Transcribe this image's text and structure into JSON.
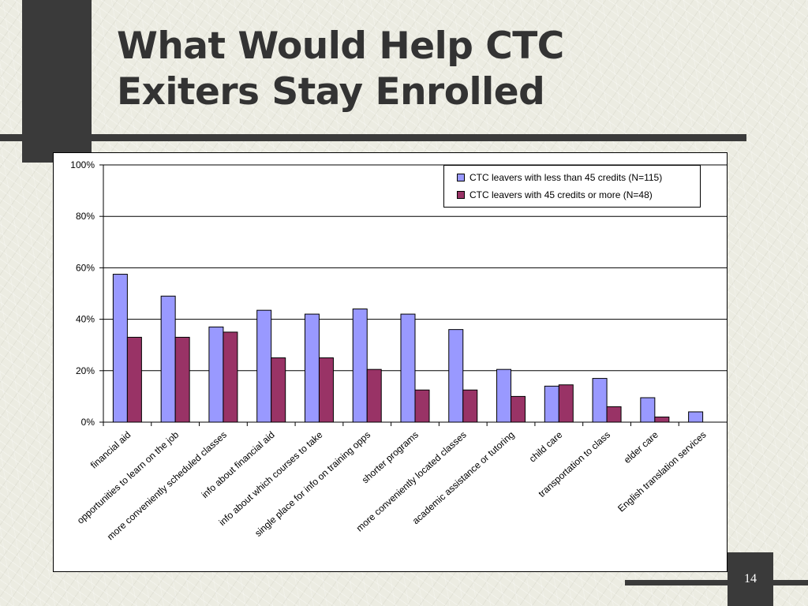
{
  "slide": {
    "title_line1": "What Would Help CTC",
    "title_line2": "Exiters Stay Enrolled",
    "page_number": "14"
  },
  "chart_data": {
    "type": "bar",
    "categories": [
      "financial aid",
      "opportunities to learn on the job",
      "more conveniently scheduled classes",
      "info about financial aid",
      "info about which courses to take",
      "single place for info on training opps",
      "shorter programs",
      "more conveniently located classes",
      "academic assistance or tutoring",
      "child care",
      "transportation to class",
      "elder care",
      "English translation services"
    ],
    "series": [
      {
        "name": "CTC leavers with less than 45 credits (N=115)",
        "color": "#9999ff",
        "values": [
          57.5,
          49,
          37,
          43.5,
          42,
          44,
          42,
          36,
          20.5,
          14,
          17,
          9.5,
          4
        ]
      },
      {
        "name": "CTC leavers with 45 credits or more (N=48)",
        "color": "#993366",
        "values": [
          33,
          33,
          35,
          25,
          25,
          20.5,
          12.5,
          12.5,
          10,
          14.5,
          6,
          2,
          0
        ]
      }
    ],
    "ylim": [
      0,
      100
    ],
    "yticks": [
      "0%",
      "20%",
      "40%",
      "60%",
      "80%",
      "100%"
    ],
    "xlabel": "",
    "ylabel": "",
    "grid": true,
    "legend_position": "top-right"
  }
}
